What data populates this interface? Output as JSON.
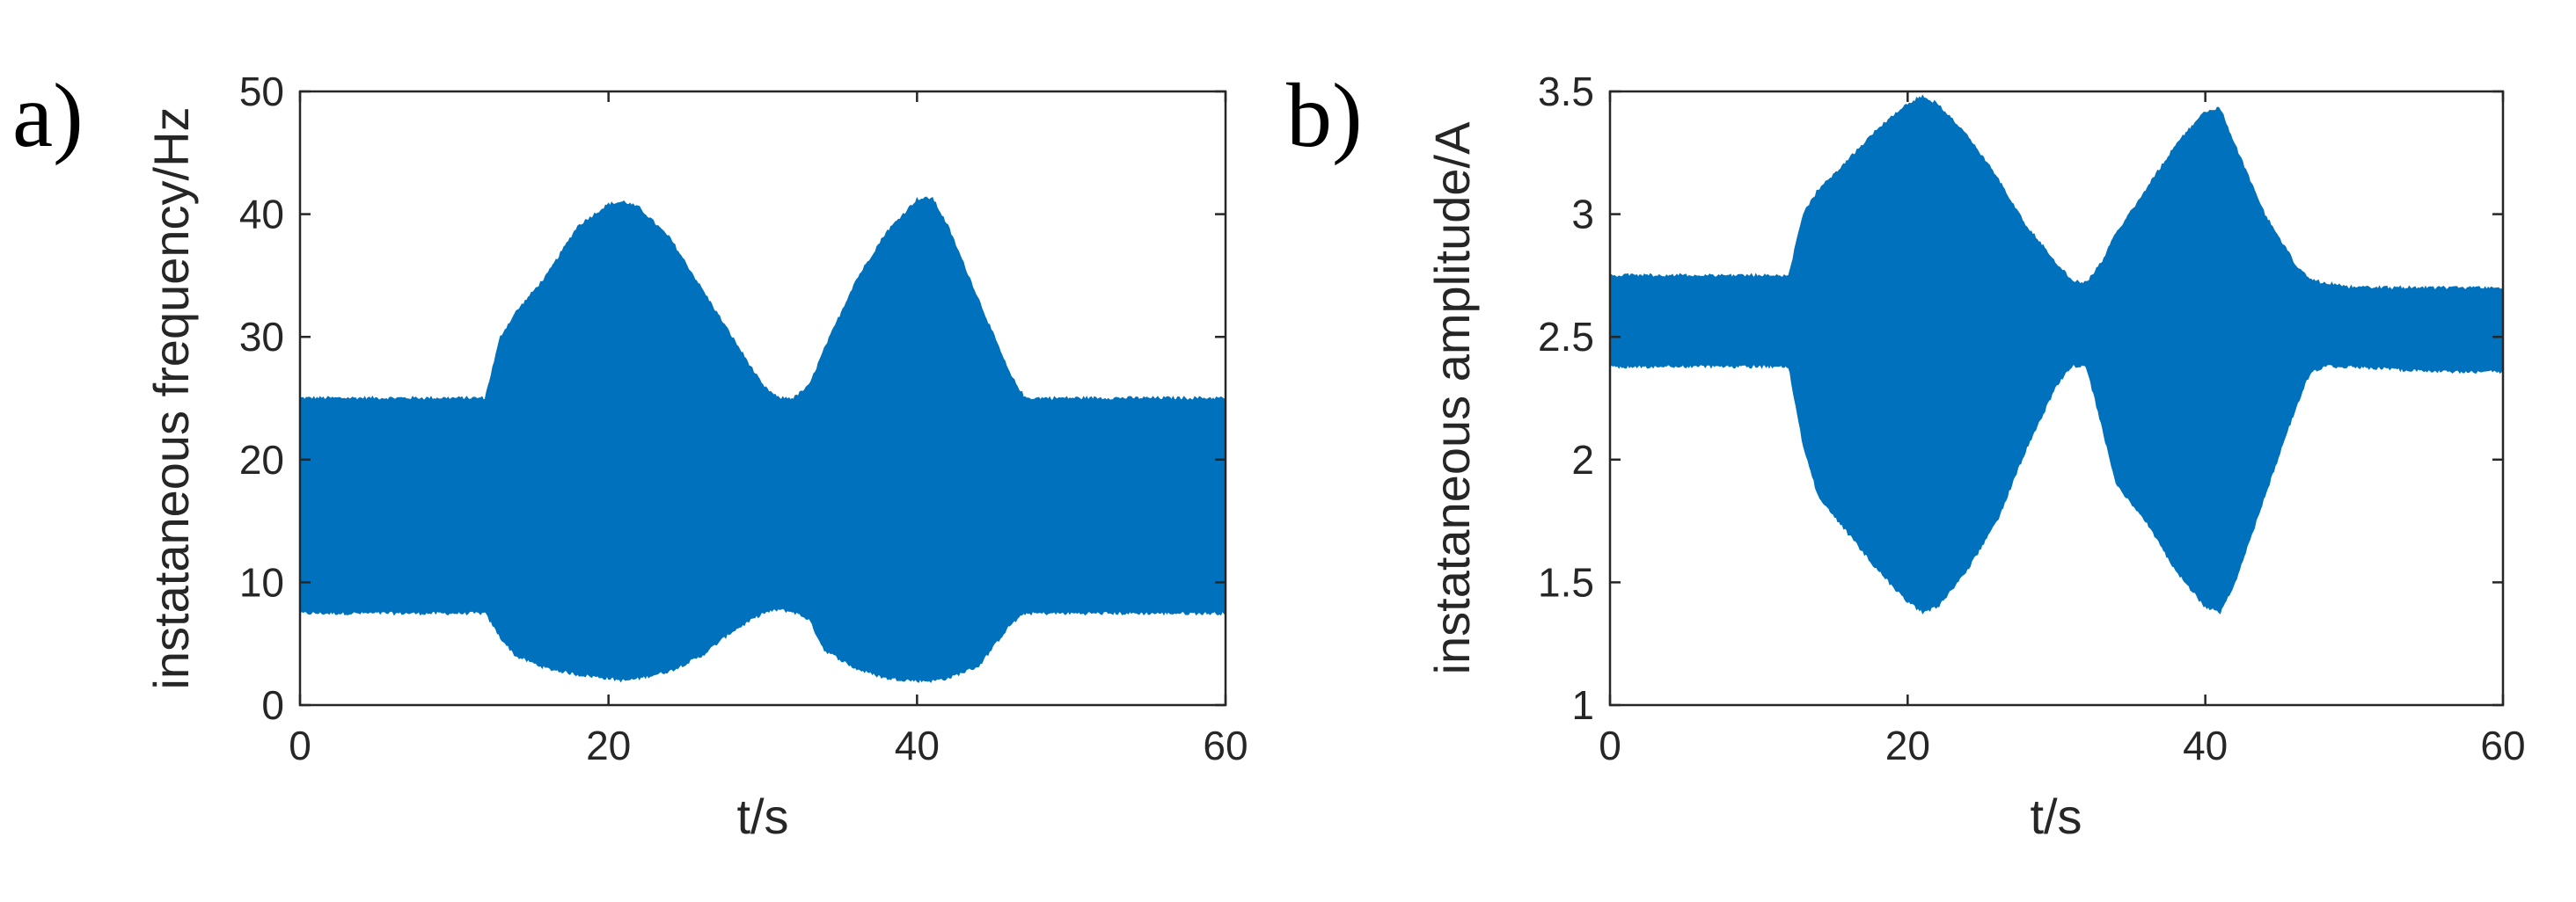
{
  "panels": {
    "a": {
      "label": "a)"
    },
    "b": {
      "label": "b)"
    }
  },
  "colors": {
    "series": "#0072BD",
    "axes": "#262626"
  },
  "chart_data": [
    {
      "type": "area",
      "panel": "a)",
      "xlabel": "t/s",
      "ylabel": "instataneous frequency/Hz",
      "xlim": [
        0,
        60
      ],
      "ylim": [
        0,
        50
      ],
      "xticks": [
        0,
        20,
        40,
        60
      ],
      "yticks": [
        0,
        10,
        20,
        30,
        40,
        50
      ],
      "grid": false,
      "series": [
        {
          "x": [
            0,
            12,
            13,
            14,
            16,
            18,
            20,
            21,
            22,
            24,
            26,
            28,
            30,
            31,
            32,
            33,
            34,
            36,
            38,
            40,
            41,
            42,
            44,
            46,
            47,
            48,
            50,
            55,
            60
          ],
          "upper": [
            25,
            25,
            30,
            32,
            35,
            39,
            40.8,
            41,
            40.5,
            38,
            34,
            30,
            26,
            25,
            25,
            26,
            29,
            34.5,
            38.5,
            41.2,
            41.3,
            39,
            33,
            27,
            25,
            25,
            25,
            25,
            25
          ],
          "lower": [
            7.5,
            7.5,
            5.5,
            4,
            3,
            2.5,
            2.2,
            2,
            2.2,
            2.8,
            4,
            6,
            7.5,
            7.8,
            7.6,
            7,
            4.5,
            3,
            2.2,
            2,
            2,
            2.2,
            3.2,
            6.5,
            7.5,
            7.5,
            7.5,
            7.5,
            7.5
          ]
        }
      ]
    },
    {
      "type": "area",
      "panel": "b)",
      "xlabel": "t/s",
      "ylabel": "instataneous amplitude/A",
      "xlim": [
        0,
        60
      ],
      "ylim": [
        1,
        3.5
      ],
      "xticks": [
        0,
        20,
        40,
        60
      ],
      "yticks": [
        1,
        1.5,
        2,
        2.5,
        3,
        3.5
      ],
      "yticklabels": [
        "1",
        "1.5",
        "2",
        "2.5",
        "3",
        "3.5"
      ],
      "grid": false,
      "series": [
        {
          "x": [
            0,
            12,
            13,
            14,
            16,
            18,
            20,
            21,
            22,
            24,
            26,
            28,
            30,
            31,
            32,
            33,
            34,
            36,
            38,
            40,
            41,
            42,
            44,
            46,
            47,
            48,
            50,
            55,
            60
          ],
          "upper": [
            2.75,
            2.75,
            3.0,
            3.1,
            3.22,
            3.35,
            3.45,
            3.48,
            3.45,
            3.32,
            3.15,
            2.95,
            2.8,
            2.73,
            2.72,
            2.8,
            2.92,
            3.1,
            3.28,
            3.42,
            3.43,
            3.28,
            3.0,
            2.8,
            2.73,
            2.72,
            2.7,
            2.7,
            2.7
          ],
          "lower": [
            2.38,
            2.38,
            2.05,
            1.85,
            1.7,
            1.55,
            1.42,
            1.38,
            1.4,
            1.55,
            1.75,
            2.05,
            2.3,
            2.38,
            2.38,
            2.15,
            1.9,
            1.75,
            1.55,
            1.4,
            1.38,
            1.5,
            1.85,
            2.2,
            2.35,
            2.38,
            2.38,
            2.36,
            2.36
          ]
        }
      ]
    }
  ]
}
